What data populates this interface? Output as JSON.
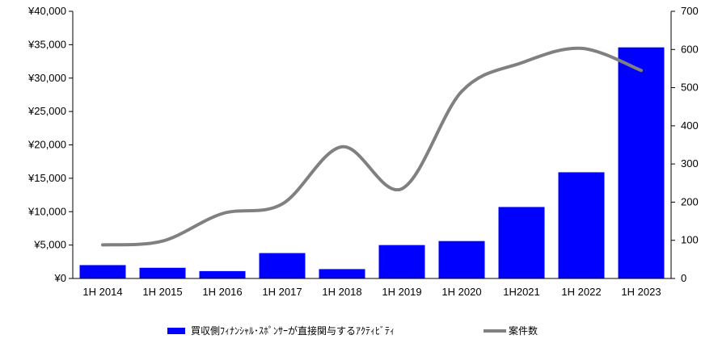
{
  "chart_data": {
    "type": "bar",
    "categories": [
      "1H 2014",
      "1H 2015",
      "1H 2016",
      "1H 2017",
      "1H 2018",
      "1H 2019",
      "1H 2020",
      "1H2021",
      "1H 2022",
      "1H 2023"
    ],
    "series": [
      {
        "name": "買収側ﾌｨﾅﾝｼｬﾙ･ｽﾎﾟﾝｻｰが直接関与するｱｸﾃｨﾋﾞﾃｨ",
        "type": "bar",
        "axis": "left",
        "color": "#0000ff",
        "values": [
          2000,
          1600,
          1100,
          3800,
          1400,
          5000,
          5600,
          10700,
          15900,
          34600
        ]
      },
      {
        "name": "案件数",
        "type": "line",
        "axis": "right",
        "color": "#808080",
        "values": [
          88,
          98,
          170,
          195,
          345,
          235,
          490,
          565,
          603,
          545
        ]
      }
    ],
    "left_axis": {
      "min": 0,
      "max": 40000,
      "ticks": [
        0,
        5000,
        10000,
        15000,
        20000,
        25000,
        30000,
        35000,
        40000
      ],
      "tick_labels": [
        "¥0",
        "¥5,000",
        "¥10,000",
        "¥15,000",
        "¥20,000",
        "¥25,000",
        "¥30,000",
        "¥35,000",
        "¥40,000"
      ]
    },
    "right_axis": {
      "min": 0,
      "max": 700,
      "ticks": [
        0,
        100,
        200,
        300,
        400,
        500,
        600,
        700
      ],
      "tick_labels": [
        "0",
        "100",
        "200",
        "300",
        "400",
        "500",
        "600",
        "700"
      ]
    },
    "legend_position": "bottom",
    "grid": false
  }
}
